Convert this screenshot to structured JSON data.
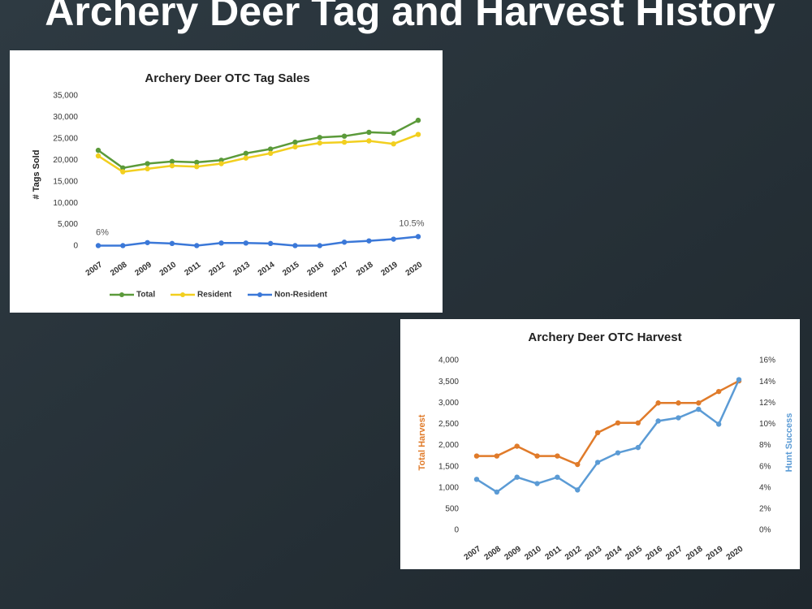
{
  "title": "Archery Deer Tag and Harvest History",
  "chart_data": [
    {
      "type": "line",
      "title": "Archery Deer OTC Tag Sales",
      "ylabel": "# Tags Sold",
      "categories": [
        "2007",
        "2008",
        "2009",
        "2010",
        "2011",
        "2012",
        "2013",
        "2014",
        "2015",
        "2016",
        "2017",
        "2018",
        "2019",
        "2020"
      ],
      "ylim": [
        0,
        35000
      ],
      "yticks": [
        0,
        {
          "value": 5000,
          "label": "5,000"
        },
        {
          "value": 10000,
          "label": "10,000"
        },
        {
          "value": 15000,
          "label": "15,000"
        },
        {
          "value": 20000,
          "label": "20,000"
        },
        {
          "value": 25000,
          "label": "25,000"
        },
        {
          "value": 30000,
          "label": "30,000"
        },
        {
          "value": 35000,
          "label": "35,000"
        }
      ],
      "series": [
        {
          "name": "Total",
          "color": "#5b9a3a",
          "values": [
            22300,
            18200,
            19200,
            19700,
            19500,
            20000,
            21600,
            22600,
            24200,
            25300,
            25600,
            26500,
            26300,
            29300
          ]
        },
        {
          "name": "Resident",
          "color": "#f2cf1f",
          "values": [
            21000,
            17300,
            18000,
            18700,
            18500,
            19200,
            20500,
            21600,
            23100,
            24000,
            24200,
            24500,
            23800,
            26000
          ]
        },
        {
          "name": "Non-Resident",
          "color": "#3b78d8",
          "values": [
            100,
            100,
            800,
            600,
            100,
            700,
            700,
            600,
            100,
            100,
            900,
            1200,
            1600,
            2200
          ]
        }
      ],
      "annotations": [
        {
          "text": "6%",
          "x": "2007"
        },
        {
          "text": "10.5%",
          "x": "2020"
        }
      ],
      "legend": "bottom"
    },
    {
      "type": "line",
      "title": "Archery Deer OTC Harvest",
      "ylabel": "Total Harvest",
      "y2label": "Hunt Success",
      "categories": [
        "2007",
        "2008",
        "2009",
        "2010",
        "2011",
        "2012",
        "2013",
        "2014",
        "2015",
        "2016",
        "2017",
        "2018",
        "2019",
        "2020"
      ],
      "ylim": [
        0,
        4000
      ],
      "yticks": [
        0,
        500,
        {
          "value": 1000,
          "label": "1,000"
        },
        {
          "value": 1500,
          "label": "1,500"
        },
        {
          "value": 2000,
          "label": "2,000"
        },
        {
          "value": 2500,
          "label": "2,500"
        },
        {
          "value": 3000,
          "label": "3,000"
        },
        {
          "value": 3500,
          "label": "3,500"
        },
        {
          "value": 4000,
          "label": "4,000"
        }
      ],
      "y2lim": [
        0,
        16
      ],
      "y2ticks": [
        {
          "value": 0,
          "label": "0%"
        },
        {
          "value": 2,
          "label": "2%"
        },
        {
          "value": 4,
          "label": "4%"
        },
        {
          "value": 6,
          "label": "6%"
        },
        {
          "value": 8,
          "label": "8%"
        },
        {
          "value": 10,
          "label": "10%"
        },
        {
          "value": 12,
          "label": "12%"
        },
        {
          "value": 14,
          "label": "14%"
        },
        {
          "value": 16,
          "label": "16%"
        }
      ],
      "series": [
        {
          "color": "#e07b2a",
          "values": [
            1750,
            1750,
            1980,
            1750,
            1750,
            1550,
            2300,
            2530,
            2530,
            3000,
            3000,
            3000,
            3270,
            3520
          ]
        },
        {
          "color": "#5b9bd5",
          "axis": "y2",
          "values": [
            4.8,
            3.6,
            5.0,
            4.4,
            5.0,
            3.8,
            6.4,
            7.3,
            7.8,
            10.3,
            10.6,
            11.4,
            10.0,
            14.2
          ]
        }
      ]
    }
  ]
}
